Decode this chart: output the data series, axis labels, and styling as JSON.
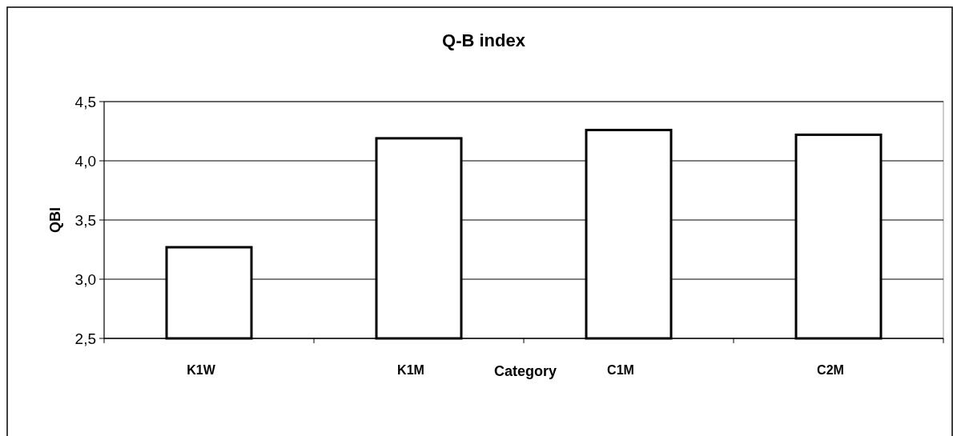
{
  "chart_data": {
    "type": "bar",
    "title": "Q-B index",
    "xlabel": "Category",
    "ylabel": "QBI",
    "categories": [
      "K1W",
      "K1M",
      "C1M",
      "C2M"
    ],
    "values": [
      3.27,
      4.19,
      4.26,
      4.22
    ],
    "color": "#ffffff",
    "ylim": [
      2.5,
      4.5
    ],
    "yticks": [
      {
        "value": 2.5,
        "label": "2,5"
      },
      {
        "value": 3.0,
        "label": "3,0"
      },
      {
        "value": 3.5,
        "label": "3,5"
      },
      {
        "value": 4.0,
        "label": "4,0"
      },
      {
        "value": 4.5,
        "label": "4,5"
      }
    ],
    "grid": "y"
  }
}
